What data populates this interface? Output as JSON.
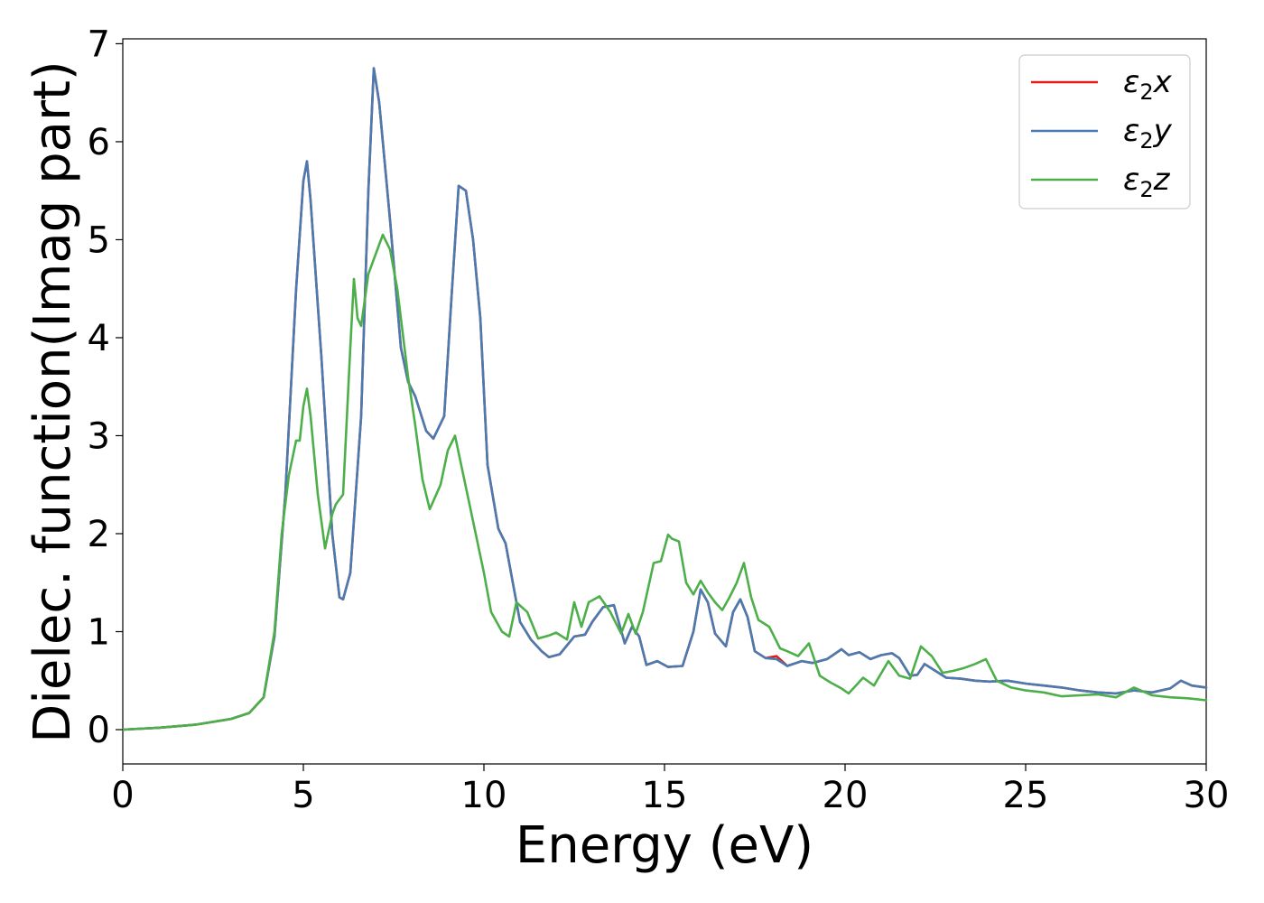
{
  "chart_data": {
    "type": "line",
    "title": "",
    "xlabel": "Energy (eV)",
    "ylabel": "Dielec. function(Imag part)",
    "xlim": [
      0,
      30
    ],
    "ylim": [
      -0.35,
      7.05
    ],
    "xticks": [
      0,
      5,
      10,
      15,
      20,
      25,
      30
    ],
    "yticks": [
      0,
      1,
      2,
      3,
      4,
      5,
      6,
      7
    ],
    "grid": false,
    "legend_position": "top-right",
    "series": [
      {
        "name": "ε₂x",
        "legend_base": "ε",
        "legend_sub": "2",
        "legend_var": "x",
        "color": "#e41a1c",
        "x": [
          0,
          1,
          2,
          3,
          3.5,
          3.9,
          4.2,
          4.5,
          4.8,
          5.0,
          5.1,
          5.2,
          5.5,
          5.8,
          6.0,
          6.1,
          6.3,
          6.6,
          6.8,
          6.95,
          7.1,
          7.4,
          7.7,
          7.9,
          8.1,
          8.4,
          8.6,
          8.9,
          9.1,
          9.3,
          9.5,
          9.7,
          9.9,
          10.1,
          10.4,
          10.6,
          10.8,
          11.0,
          11.3,
          11.6,
          11.8,
          12.1,
          12.5,
          12.8,
          13.0,
          13.3,
          13.6,
          13.9,
          14.1,
          14.3,
          14.5,
          14.8,
          15.1,
          15.5,
          15.8,
          16.0,
          16.2,
          16.4,
          16.7,
          16.9,
          17.1,
          17.3,
          17.5,
          17.8,
          18.1,
          18.4,
          18.8,
          19.1,
          19.5,
          19.9,
          20.1,
          20.4,
          20.7,
          21.0,
          21.3,
          21.5,
          21.8,
          22.0,
          22.2,
          22.5,
          22.8,
          23.2,
          23.6,
          24.0,
          24.5,
          25.0,
          25.5,
          26.0,
          26.5,
          27.0,
          27.5,
          28.0,
          28.5,
          29.0,
          29.3,
          29.6,
          30.0
        ],
        "y": [
          0.0,
          0.02,
          0.05,
          0.11,
          0.17,
          0.33,
          0.95,
          2.4,
          4.5,
          5.6,
          5.8,
          5.4,
          3.8,
          2.0,
          1.35,
          1.33,
          1.6,
          3.2,
          5.5,
          6.75,
          6.4,
          5.2,
          3.9,
          3.55,
          3.4,
          3.05,
          2.97,
          3.2,
          4.4,
          5.55,
          5.5,
          5.0,
          4.2,
          2.7,
          2.05,
          1.9,
          1.5,
          1.1,
          0.92,
          0.8,
          0.74,
          0.77,
          0.95,
          0.97,
          1.1,
          1.25,
          1.27,
          0.88,
          1.05,
          0.95,
          0.66,
          0.7,
          0.64,
          0.65,
          1.0,
          1.43,
          1.3,
          0.98,
          0.85,
          1.2,
          1.33,
          1.15,
          0.8,
          0.73,
          0.75,
          0.65,
          0.7,
          0.68,
          0.72,
          0.82,
          0.76,
          0.79,
          0.72,
          0.76,
          0.78,
          0.73,
          0.55,
          0.56,
          0.67,
          0.6,
          0.53,
          0.52,
          0.5,
          0.49,
          0.5,
          0.47,
          0.45,
          0.43,
          0.4,
          0.38,
          0.37,
          0.4,
          0.38,
          0.42,
          0.5,
          0.45,
          0.43
        ]
      },
      {
        "name": "ε₂y",
        "legend_base": "ε",
        "legend_sub": "2",
        "legend_var": "y",
        "color": "#4a7bb0",
        "x": [
          0,
          1,
          2,
          3,
          3.5,
          3.9,
          4.2,
          4.5,
          4.8,
          5.0,
          5.1,
          5.2,
          5.5,
          5.8,
          6.0,
          6.1,
          6.3,
          6.6,
          6.8,
          6.95,
          7.1,
          7.4,
          7.7,
          7.9,
          8.1,
          8.4,
          8.6,
          8.9,
          9.1,
          9.3,
          9.5,
          9.7,
          9.9,
          10.1,
          10.4,
          10.6,
          10.8,
          11.0,
          11.3,
          11.6,
          11.8,
          12.1,
          12.5,
          12.8,
          13.0,
          13.3,
          13.6,
          13.9,
          14.1,
          14.3,
          14.5,
          14.8,
          15.1,
          15.5,
          15.8,
          16.0,
          16.2,
          16.4,
          16.7,
          16.9,
          17.1,
          17.3,
          17.5,
          17.8,
          18.1,
          18.4,
          18.8,
          19.1,
          19.5,
          19.9,
          20.1,
          20.4,
          20.7,
          21.0,
          21.3,
          21.5,
          21.8,
          22.0,
          22.2,
          22.5,
          22.8,
          23.2,
          23.6,
          24.0,
          24.5,
          25.0,
          25.5,
          26.0,
          26.5,
          27.0,
          27.5,
          28.0,
          28.5,
          29.0,
          29.3,
          29.6,
          30.0
        ],
        "y": [
          0.0,
          0.02,
          0.05,
          0.11,
          0.17,
          0.33,
          0.95,
          2.4,
          4.5,
          5.6,
          5.8,
          5.4,
          3.8,
          2.0,
          1.35,
          1.33,
          1.6,
          3.2,
          5.5,
          6.75,
          6.4,
          5.2,
          3.9,
          3.55,
          3.4,
          3.05,
          2.97,
          3.2,
          4.4,
          5.55,
          5.5,
          5.0,
          4.2,
          2.7,
          2.05,
          1.9,
          1.5,
          1.1,
          0.92,
          0.8,
          0.74,
          0.77,
          0.95,
          0.97,
          1.1,
          1.25,
          1.27,
          0.88,
          1.05,
          0.95,
          0.66,
          0.7,
          0.64,
          0.65,
          1.0,
          1.43,
          1.3,
          0.98,
          0.85,
          1.2,
          1.33,
          1.15,
          0.8,
          0.73,
          0.72,
          0.65,
          0.7,
          0.68,
          0.72,
          0.82,
          0.76,
          0.79,
          0.72,
          0.76,
          0.78,
          0.73,
          0.55,
          0.56,
          0.67,
          0.6,
          0.53,
          0.52,
          0.5,
          0.49,
          0.5,
          0.47,
          0.45,
          0.43,
          0.4,
          0.38,
          0.37,
          0.4,
          0.38,
          0.42,
          0.5,
          0.45,
          0.43
        ]
      },
      {
        "name": "ε₂z",
        "legend_base": "ε",
        "legend_sub": "2",
        "legend_var": "z",
        "color": "#4daf4a",
        "x": [
          0,
          1,
          2,
          3,
          3.5,
          3.9,
          4.2,
          4.4,
          4.6,
          4.8,
          4.9,
          5.0,
          5.1,
          5.2,
          5.4,
          5.6,
          5.8,
          5.9,
          6.1,
          6.3,
          6.4,
          6.5,
          6.6,
          6.8,
          7.0,
          7.2,
          7.4,
          7.6,
          7.9,
          8.1,
          8.3,
          8.5,
          8.8,
          9.0,
          9.2,
          9.4,
          9.6,
          9.8,
          10.0,
          10.2,
          10.5,
          10.7,
          10.9,
          11.2,
          11.5,
          11.8,
          12.0,
          12.3,
          12.5,
          12.7,
          12.9,
          13.2,
          13.5,
          13.8,
          14.0,
          14.2,
          14.4,
          14.7,
          14.9,
          15.1,
          15.2,
          15.4,
          15.6,
          15.8,
          16.0,
          16.2,
          16.4,
          16.6,
          16.8,
          17.0,
          17.2,
          17.4,
          17.6,
          17.9,
          18.2,
          18.4,
          18.7,
          19.0,
          19.3,
          19.6,
          19.9,
          20.1,
          20.5,
          20.8,
          21.2,
          21.5,
          21.8,
          22.1,
          22.4,
          22.7,
          23.0,
          23.3,
          23.6,
          23.9,
          24.2,
          24.6,
          25.0,
          25.5,
          26.0,
          26.5,
          27.0,
          27.5,
          28.0,
          28.5,
          29.0,
          29.5,
          30.0
        ],
        "y": [
          0.0,
          0.02,
          0.05,
          0.11,
          0.17,
          0.33,
          1.0,
          2.0,
          2.6,
          2.95,
          2.95,
          3.3,
          3.48,
          3.2,
          2.4,
          1.85,
          2.2,
          2.3,
          2.4,
          3.9,
          4.6,
          4.2,
          4.12,
          4.65,
          4.85,
          5.05,
          4.9,
          4.5,
          3.6,
          3.1,
          2.55,
          2.25,
          2.5,
          2.85,
          3.0,
          2.65,
          2.3,
          1.95,
          1.6,
          1.2,
          1.0,
          0.95,
          1.3,
          1.2,
          0.93,
          0.96,
          0.99,
          0.92,
          1.3,
          1.05,
          1.3,
          1.36,
          1.2,
          0.98,
          1.18,
          0.98,
          1.2,
          1.7,
          1.72,
          1.99,
          1.95,
          1.92,
          1.5,
          1.38,
          1.52,
          1.4,
          1.3,
          1.22,
          1.35,
          1.5,
          1.7,
          1.35,
          1.12,
          1.05,
          0.83,
          0.8,
          0.75,
          0.88,
          0.55,
          0.48,
          0.42,
          0.37,
          0.53,
          0.45,
          0.7,
          0.55,
          0.52,
          0.85,
          0.75,
          0.58,
          0.6,
          0.63,
          0.67,
          0.72,
          0.5,
          0.43,
          0.4,
          0.38,
          0.34,
          0.35,
          0.36,
          0.33,
          0.43,
          0.35,
          0.33,
          0.32,
          0.3
        ]
      }
    ]
  }
}
